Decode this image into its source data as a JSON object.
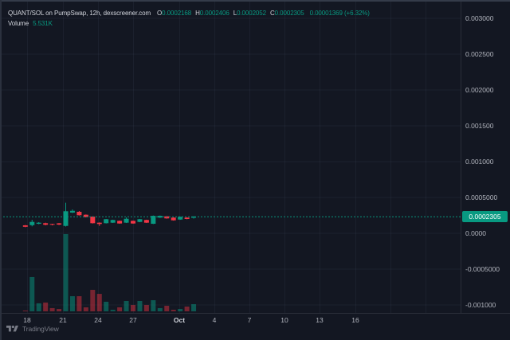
{
  "header": {
    "title": "QUANT/SOL on PumpSwap, 12h, dexscreener.com",
    "ohlc": {
      "o_label": "O",
      "o": "0.0002168",
      "h_label": "H",
      "h": "0.0002406",
      "l_label": "L",
      "l": "0.0002052",
      "c_label": "C",
      "c": "0.0002305",
      "change": "0.00001369 (+6.32%)"
    },
    "volume_label": "Volume",
    "volume_value": "5.531K"
  },
  "attribution": {
    "label": "TradingView"
  },
  "colors": {
    "background": "#131722",
    "up": "#089981",
    "down": "#f23645",
    "volume_up": "rgba(8,153,129,0.5)",
    "volume_down": "rgba(242,54,69,0.45)",
    "grid": "rgba(178,192,220,0.06)",
    "axis_line": "#2a2e39",
    "axis_text": "#b2b5be",
    "text_primary": "#d1d4dc",
    "text_muted": "#787b86",
    "badge_bg": "#089981",
    "badge_text": "#ffffff"
  },
  "chart_data": {
    "type": "candlestick",
    "title": "QUANT/SOL on PumpSwap, 12h, dexscreener.com",
    "symbol": "QUANT/SOL",
    "exchange": "PumpSwap",
    "interval": "12h",
    "source": "dexscreener.com",
    "legend_ohlc": {
      "open": 0.0002168,
      "high": 0.0002406,
      "low": 0.0002052,
      "close": 0.0002305,
      "change_abs": "0.00001369",
      "change_pct": "+6.32%"
    },
    "volume_display": "5.531K",
    "volume_unit": "K",
    "last_price": {
      "value": 0.0002305,
      "label": "0.0002305"
    },
    "y_axis": {
      "side": "right",
      "ticks": [
        {
          "label": "0.003000",
          "value": 0.003
        },
        {
          "label": "0.002500",
          "value": 0.0025
        },
        {
          "label": "0.002000",
          "value": 0.002
        },
        {
          "label": "0.001500",
          "value": 0.0015
        },
        {
          "label": "0.001000",
          "value": 0.001
        },
        {
          "label": "0.0005000",
          "value": 0.0005
        },
        {
          "label": "0.0000",
          "value": 0
        },
        {
          "label": "-0.0005000",
          "value": -0.0005
        },
        {
          "label": "-0.001000",
          "value": -0.001
        }
      ]
    },
    "x_axis": {
      "ticks": [
        "18",
        "21",
        "24",
        "27",
        "Oct",
        "4",
        "7",
        "10",
        "13",
        "16"
      ],
      "bold_tick": "Oct"
    },
    "candles": [
      {
        "o": 0.000111,
        "h": 0.000116,
        "l": 8.5e-05,
        "c": 9.1e-05,
        "v": 0.6
      },
      {
        "o": 0.000114,
        "h": 0.000189,
        "l": 9.7e-05,
        "c": 0.000159,
        "v": 26.5
      },
      {
        "o": 0.000133,
        "h": 0.000156,
        "l": 0.000126,
        "c": 0.000148,
        "v": 6.2
      },
      {
        "o": 0.000141,
        "h": 0.000148,
        "l": 0.000111,
        "c": 0.000119,
        "v": 6.8
      },
      {
        "o": 0.00013,
        "h": 0.000133,
        "l": 0.000111,
        "c": 0.000119,
        "v": 2.5
      },
      {
        "o": 0.000139,
        "h": 0.000144,
        "l": 0.000115,
        "c": 0.000122,
        "v": 1.8
      },
      {
        "o": 0.000103,
        "h": 0.000426,
        "l": 9.5e-05,
        "c": 0.000308,
        "v": 59.7
      },
      {
        "o": 0.000289,
        "h": 0.000333,
        "l": 0.000283,
        "c": 0.000314,
        "v": 11.7
      },
      {
        "o": 0.0003,
        "h": 0.000311,
        "l": 0.000248,
        "c": 0.000252,
        "v": 11.7
      },
      {
        "o": 0.000259,
        "h": 0.000263,
        "l": 0.000222,
        "c": 0.000226,
        "v": 3.1
      },
      {
        "o": 0.000233,
        "h": 0.000237,
        "l": 0.000137,
        "c": 0.000141,
        "v": 16.6
      },
      {
        "o": 0.000148,
        "h": 0.000152,
        "l": 0.000103,
        "c": 0.00013,
        "v": 13.5
      },
      {
        "o": 0.000141,
        "h": 0.0002,
        "l": 0.000137,
        "c": 0.000197,
        "v": 7.4
      },
      {
        "o": 0.000148,
        "h": 0.00019,
        "l": 0.000144,
        "c": 0.000186,
        "v": 1.2
      },
      {
        "o": 0.000174,
        "h": 0.000178,
        "l": 0.000133,
        "c": 0.000137,
        "v": 3.1
      },
      {
        "o": 0.000148,
        "h": 0.000222,
        "l": 0.000144,
        "c": 0.000203,
        "v": 8.0
      },
      {
        "o": 0.000174,
        "h": 0.000178,
        "l": 0.000133,
        "c": 0.000137,
        "v": 4.9
      },
      {
        "o": 0.000159,
        "h": 0.0002,
        "l": 0.000155,
        "c": 0.000197,
        "v": 8.0
      },
      {
        "o": 0.000186,
        "h": 0.00019,
        "l": 0.000144,
        "c": 0.000148,
        "v": 4.9
      },
      {
        "o": 0.000133,
        "h": 0.000248,
        "l": 0.000129,
        "c": 0.000244,
        "v": 8.6
      },
      {
        "o": 0.000219,
        "h": 0.000248,
        "l": 0.000214,
        "c": 0.000244,
        "v": 2.5
      },
      {
        "o": 0.000237,
        "h": 0.000241,
        "l": 0.000204,
        "c": 0.000208,
        "v": 4.3
      },
      {
        "o": 0.000219,
        "h": 0.000222,
        "l": 0.000177,
        "c": 0.000181,
        "v": 1.2
      },
      {
        "o": 0.000192,
        "h": 0.000234,
        "l": 0.000188,
        "c": 0.00023,
        "v": 1.8
      },
      {
        "o": 0.000219,
        "h": 0.000222,
        "l": 0.000196,
        "c": 0.0002,
        "v": 3.7
      },
      {
        "o": 0.0002168,
        "h": 0.0002406,
        "l": 0.0002052,
        "c": 0.0002305,
        "v": 5.531
      }
    ]
  }
}
